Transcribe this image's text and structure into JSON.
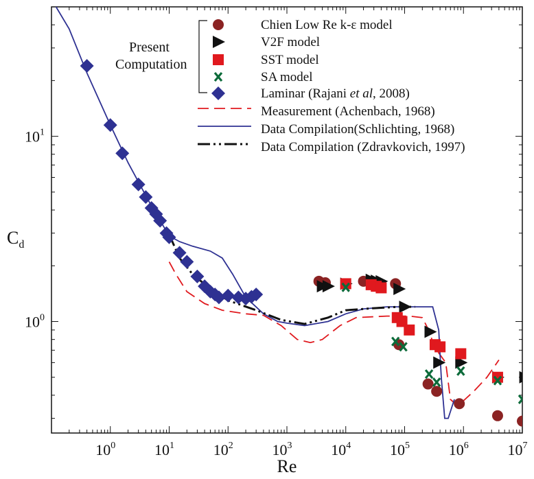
{
  "chart_data": {
    "type": "scatter",
    "xlabel": "Re",
    "ylabel": "C",
    "ylabel_sub": "d",
    "xscale": "log",
    "yscale": "log",
    "xlim": [
      0.1,
      10000000
    ],
    "ylim": [
      0.25,
      50
    ],
    "x_ticks": [
      {
        "base": "10",
        "exp": "0",
        "value": 1
      },
      {
        "base": "10",
        "exp": "1",
        "value": 10
      },
      {
        "base": "10",
        "exp": "2",
        "value": 100
      },
      {
        "base": "10",
        "exp": "3",
        "value": 1000
      },
      {
        "base": "10",
        "exp": "4",
        "value": 10000
      },
      {
        "base": "10",
        "exp": "5",
        "value": 100000
      },
      {
        "base": "10",
        "exp": "6",
        "value": 1000000
      },
      {
        "base": "10",
        "exp": "7",
        "value": 10000000
      }
    ],
    "y_ticks": [
      {
        "base": "10",
        "exp": "0",
        "value": 1
      },
      {
        "base": "10",
        "exp": "1",
        "value": 10
      }
    ],
    "legend_group_label": [
      "Present",
      "Computation"
    ],
    "legend_placement": "top-right",
    "series": [
      {
        "name": "Chien Low Re k-ε model",
        "marker": "circle",
        "color": "#8b2323",
        "points": [
          [
            3500,
            1.65
          ],
          [
            4500,
            1.62
          ],
          [
            20000,
            1.65
          ],
          [
            30000,
            1.6
          ],
          [
            70000,
            1.6
          ],
          [
            80000,
            0.75
          ],
          [
            250000,
            0.46
          ],
          [
            350000,
            0.42
          ],
          [
            850000,
            0.36
          ],
          [
            3800000,
            0.31
          ],
          [
            10000000,
            0.29
          ]
        ]
      },
      {
        "name": "V2F model",
        "marker": "triangle-right",
        "color": "#111111",
        "points": [
          [
            4000,
            1.55
          ],
          [
            5000,
            1.55
          ],
          [
            10000,
            1.6
          ],
          [
            27000,
            1.68
          ],
          [
            33000,
            1.66
          ],
          [
            40000,
            1.65
          ],
          [
            80000,
            1.5
          ],
          [
            100000,
            1.2
          ],
          [
            270000,
            0.88
          ],
          [
            380000,
            0.6
          ],
          [
            900000,
            0.6
          ],
          [
            3800000,
            0.5
          ],
          [
            11000000,
            0.5
          ]
        ]
      },
      {
        "name": "SST model",
        "marker": "square",
        "color": "#e0191e",
        "points": [
          [
            10000,
            1.6
          ],
          [
            27000,
            1.58
          ],
          [
            33000,
            1.55
          ],
          [
            40000,
            1.52
          ],
          [
            75000,
            1.05
          ],
          [
            90000,
            1.0
          ],
          [
            120000,
            0.9
          ],
          [
            330000,
            0.75
          ],
          [
            400000,
            0.73
          ],
          [
            900000,
            0.67
          ],
          [
            3800000,
            0.5
          ]
        ]
      },
      {
        "name": "SA  model",
        "marker": "x",
        "color": "#0c6b3a",
        "points": [
          [
            10000,
            1.53
          ],
          [
            70000,
            0.78
          ],
          [
            95000,
            0.73
          ],
          [
            260000,
            0.52
          ],
          [
            350000,
            0.47
          ],
          [
            900000,
            0.54
          ],
          [
            3800000,
            0.48
          ],
          [
            10000000,
            0.38
          ]
        ]
      },
      {
        "name": "Laminar (Rajani et al, 2008)",
        "name_parts": [
          "Laminar (Rajani ",
          "et al",
          ", 2008)"
        ],
        "marker": "diamond",
        "color": "#2e3192",
        "points": [
          [
            0.4,
            24
          ],
          [
            1,
            11.5
          ],
          [
            1.6,
            8.1
          ],
          [
            3,
            5.5
          ],
          [
            4,
            4.7
          ],
          [
            5,
            4.1
          ],
          [
            6,
            3.8
          ],
          [
            7,
            3.5
          ],
          [
            9,
            3.0
          ],
          [
            10,
            2.85
          ],
          [
            15,
            2.35
          ],
          [
            20,
            2.1
          ],
          [
            30,
            1.75
          ],
          [
            40,
            1.55
          ],
          [
            50,
            1.45
          ],
          [
            60,
            1.4
          ],
          [
            70,
            1.35
          ],
          [
            100,
            1.38
          ],
          [
            150,
            1.35
          ],
          [
            200,
            1.33
          ],
          [
            250,
            1.36
          ],
          [
            300,
            1.4
          ]
        ]
      },
      {
        "name": "Measurement (Achenbach, 1968)",
        "line": "dashed",
        "color": "#e0191e",
        "points": [
          [
            10,
            2.1
          ],
          [
            13,
            1.8
          ],
          [
            20,
            1.45
          ],
          [
            40,
            1.25
          ],
          [
            80,
            1.15
          ],
          [
            200,
            1.1
          ],
          [
            400,
            1.08
          ],
          [
            800,
            0.95
          ],
          [
            1500,
            0.8
          ],
          [
            2500,
            0.77
          ],
          [
            4000,
            0.8
          ],
          [
            8000,
            0.95
          ],
          [
            15000,
            1.05
          ],
          [
            50000,
            1.07
          ],
          [
            120000,
            1.07
          ],
          [
            200000,
            1.05
          ],
          [
            280000,
            0.85
          ],
          [
            300000,
            0.75
          ],
          [
            500000,
            0.6
          ],
          [
            600000,
            0.38
          ],
          [
            800000,
            0.35
          ],
          [
            1500000,
            0.42
          ],
          [
            2500000,
            0.5
          ],
          [
            4000000,
            0.62
          ]
        ]
      },
      {
        "name": "Data Compilation(Schlichting, 1968)",
        "line": "solid",
        "color": "#2e3192",
        "points": [
          [
            0.1,
            55
          ],
          [
            0.2,
            38
          ],
          [
            0.4,
            22
          ],
          [
            1,
            11.5
          ],
          [
            2,
            7.2
          ],
          [
            5,
            4.2
          ],
          [
            10,
            2.9
          ],
          [
            15,
            2.7
          ],
          [
            25,
            2.55
          ],
          [
            50,
            2.4
          ],
          [
            80,
            2.2
          ],
          [
            120,
            1.8
          ],
          [
            200,
            1.35
          ],
          [
            400,
            1.1
          ],
          [
            700,
            1.0
          ],
          [
            1000,
            0.98
          ],
          [
            2000,
            0.95
          ],
          [
            5000,
            1.0
          ],
          [
            10000,
            1.1
          ],
          [
            20000,
            1.17
          ],
          [
            50000,
            1.2
          ],
          [
            150000,
            1.2
          ],
          [
            300000,
            1.2
          ],
          [
            380000,
            0.9
          ],
          [
            420000,
            0.5
          ],
          [
            480000,
            0.3
          ],
          [
            550000,
            0.3
          ],
          [
            700000,
            0.38
          ]
        ]
      },
      {
        "name": "Data Compilation (Zdravkovich, 1997)",
        "line": "dashdotdot",
        "color": "#111111",
        "points": [
          [
            10,
            2.95
          ],
          [
            15,
            2.2
          ],
          [
            25,
            1.8
          ],
          [
            50,
            1.5
          ],
          [
            100,
            1.3
          ],
          [
            300,
            1.15
          ],
          [
            800,
            1.02
          ],
          [
            2000,
            0.97
          ],
          [
            5000,
            1.05
          ],
          [
            10000,
            1.15
          ],
          [
            30000,
            1.18
          ],
          [
            80000,
            1.2
          ],
          [
            150000,
            1.2
          ]
        ]
      }
    ]
  }
}
